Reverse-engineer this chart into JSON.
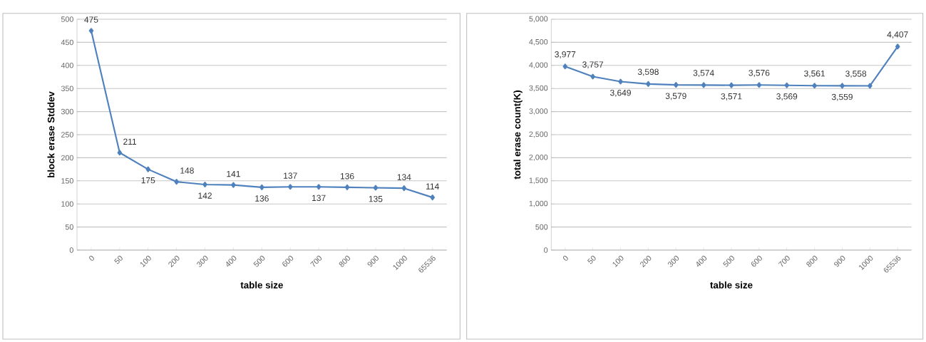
{
  "chart_data": [
    {
      "type": "line",
      "xlabel": "table size",
      "ylabel": "block erase Stddev",
      "categories": [
        "0",
        "50",
        "100",
        "200",
        "300",
        "400",
        "500",
        "600",
        "700",
        "800",
        "900",
        "1000",
        "65536"
      ],
      "series": [
        {
          "color": "#4f81bd",
          "values": [
            475,
            211,
            175,
            148,
            142,
            141,
            136,
            137,
            137,
            136,
            135,
            134,
            114
          ]
        }
      ],
      "data_labels": true,
      "ylim": [
        0,
        500
      ],
      "yticks": [
        0,
        50,
        100,
        150,
        200,
        250,
        300,
        350,
        400,
        450,
        500
      ],
      "grid": "y",
      "marker": "diamond",
      "line_style": "solid"
    },
    {
      "type": "line",
      "xlabel": "table size",
      "ylabel": "total erase count(K)",
      "categories": [
        "0",
        "50",
        "100",
        "200",
        "300",
        "400",
        "500",
        "600",
        "700",
        "800",
        "900",
        "1000",
        "65536"
      ],
      "series": [
        {
          "color": "#4f81bd",
          "values": [
            3977,
            3757,
            3649,
            3598,
            3579,
            3574,
            3571,
            3576,
            3569,
            3561,
            3559,
            3558,
            4407
          ],
          "value_labels": [
            "3,977",
            "3,757",
            "3,649",
            "3,598",
            "3,579",
            "3,574",
            "3,571",
            "3,576",
            "3,569",
            "3,561",
            "3,559",
            "3,558",
            "4,407"
          ]
        }
      ],
      "ylim": [
        0,
        5000
      ],
      "yticks": [
        0,
        {
          "value": 500,
          "label": "500"
        },
        {
          "value": 1000,
          "label": "1,000"
        },
        {
          "value": 1500,
          "label": "1,500"
        },
        {
          "value": 2000,
          "label": "2,000"
        },
        {
          "value": 2500,
          "label": "2,500"
        },
        {
          "value": 3000,
          "label": "3,000"
        },
        {
          "value": 3500,
          "label": "3,500"
        },
        {
          "value": 4000,
          "label": "4,000"
        },
        {
          "value": 4500,
          "label": "4,500"
        },
        {
          "value": 5000,
          "label": "5,000"
        }
      ],
      "grid": "y",
      "marker": "diamond",
      "line_style": "solid"
    }
  ]
}
